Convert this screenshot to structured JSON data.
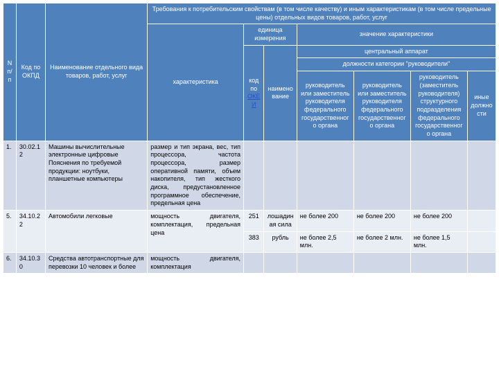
{
  "colors": {
    "header_bg": "#4f81bd",
    "header_fg": "#ffffff",
    "band1": "#d0d8e8",
    "band2": "#e9edf4",
    "border": "#ffffff",
    "link": "#2a4fd0"
  },
  "header": {
    "n": "N п/п",
    "kod": "Код по ОКПД",
    "naim": "Наименование отдельного вида товаров, работ, услуг",
    "treb": "Требования к потребительским свойствам (в том числе качеству) и иным характеристикам (в том числе предельные цены) отдельных видов товаров, работ, услуг",
    "har": "характеристика",
    "ed": "единица измерения",
    "znach": "значение характеристики",
    "kod_okei_1": "код по ",
    "kod_okei_link": "ОКЕИ",
    "naimen": "наименование",
    "central": "центральный аппарат",
    "dolzhnosti": "должности категории \"руководители\"",
    "r1": "руководитель или заместитель руководителя федерального государственного органа",
    "r2": "руководитель или заместитель руководителя федерального государственного органа",
    "r3": "руководитель (заместитель руководителя) структурного подразделения федерального государственного органа",
    "r4": "иные должности"
  },
  "rows": [
    {
      "n": "1.",
      "kod": "30.02.12",
      "naim": "Машины вычислительные электронные цифровые Пояснения по требуемой продукции: ноутбуки, планшетные компьютеры",
      "har": "размер и тип экрана, вес, тип процессора, частота процессора, размер оперативной памяти, объем накопителя, тип жесткого диска, предустановленное программное обеспечение, предельная цена",
      "ed": [],
      "vals": [
        [
          "",
          "",
          "",
          ""
        ]
      ]
    },
    {
      "n": "5.",
      "kod": "34.10.22",
      "naim": "Автомобили легковые",
      "har": "мощность двигателя, комплектация, предельная цена",
      "ed": [
        {
          "kod": "251",
          "naimen": "лошадиная сила",
          "v": [
            "не более 200",
            "не более 200",
            "не более 200",
            ""
          ]
        },
        {
          "kod": "383",
          "naimen": "рубль",
          "v": [
            "не более 2,5 млн.",
            "не более 2 млн.",
            "не более 1,5 млн.",
            ""
          ]
        }
      ]
    },
    {
      "n": "6.",
      "kod": "34.10.30",
      "naim": "Средства автотранспортные для перевозки 10 человек и более",
      "har": "мощность двигателя, комплектация",
      "ed": [],
      "vals": [
        [
          "",
          "",
          "",
          ""
        ]
      ]
    }
  ]
}
